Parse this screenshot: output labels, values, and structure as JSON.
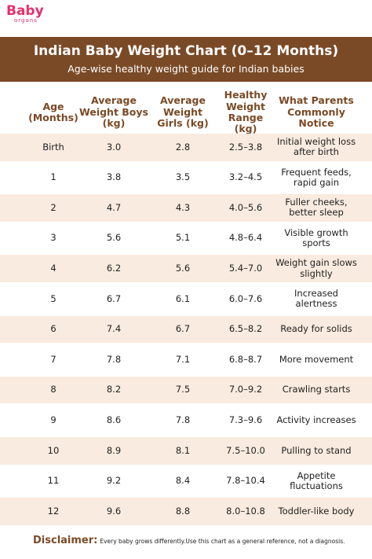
{
  "logo": {
    "brand": "Baby",
    "sub": "organs"
  },
  "header": {
    "title": "Indian Baby Weight Chart (0–12 Months)",
    "subtitle": "Age-wise healthy weight guide for Indian babies"
  },
  "table": {
    "columns": [
      "Age (Months)",
      "Average Weight Boys (kg)",
      "Average Weight Girls (kg)",
      "Healthy Weight Range (kg)",
      "What Parents Commonly Notice"
    ],
    "rows": [
      [
        "Birth",
        "3.0",
        "2.8",
        "2.5–3.8",
        "Initial weight loss after birth"
      ],
      [
        "1",
        "3.8",
        "3.5",
        "3.2–4.5",
        "Frequent feeds, rapid gain"
      ],
      [
        "2",
        "4.7",
        "4.3",
        "4.0–5.6",
        "Fuller cheeks, better sleep"
      ],
      [
        "3",
        "5.6",
        "5.1",
        "4.8–6.4",
        "Visible growth sports"
      ],
      [
        "4",
        "6.2",
        "5.6",
        "5.4–7.0",
        "Weight gain slows slightly"
      ],
      [
        "5",
        "6.7",
        "6.1",
        "6.0–7.6",
        "Increased alertness"
      ],
      [
        "6",
        "7.4",
        "6.7",
        "6.5–8.2",
        "Ready for solids"
      ],
      [
        "7",
        "7.8",
        "7.1",
        "6.8–8.7",
        "More movement"
      ],
      [
        "8",
        "8.2",
        "7.5",
        "7.0–9.2",
        "Crawling starts"
      ],
      [
        "9",
        "8.6",
        "7.8",
        "7.3–9.6",
        "Activity increases"
      ],
      [
        "10",
        "8.9",
        "8.1",
        "7.5–10.0",
        "Pulling to stand"
      ],
      [
        "11",
        "9.2",
        "8.4",
        "7.8–10.4",
        "Appetite fluctuations"
      ],
      [
        "12",
        "9.6",
        "8.8",
        "8.0–10.8",
        "Toddler-like body"
      ]
    ]
  },
  "disclaimer": {
    "label": "Disclaimer:",
    "text": "Every baby grows differently.Use this chart as a general reference, not a diagnosis."
  }
}
